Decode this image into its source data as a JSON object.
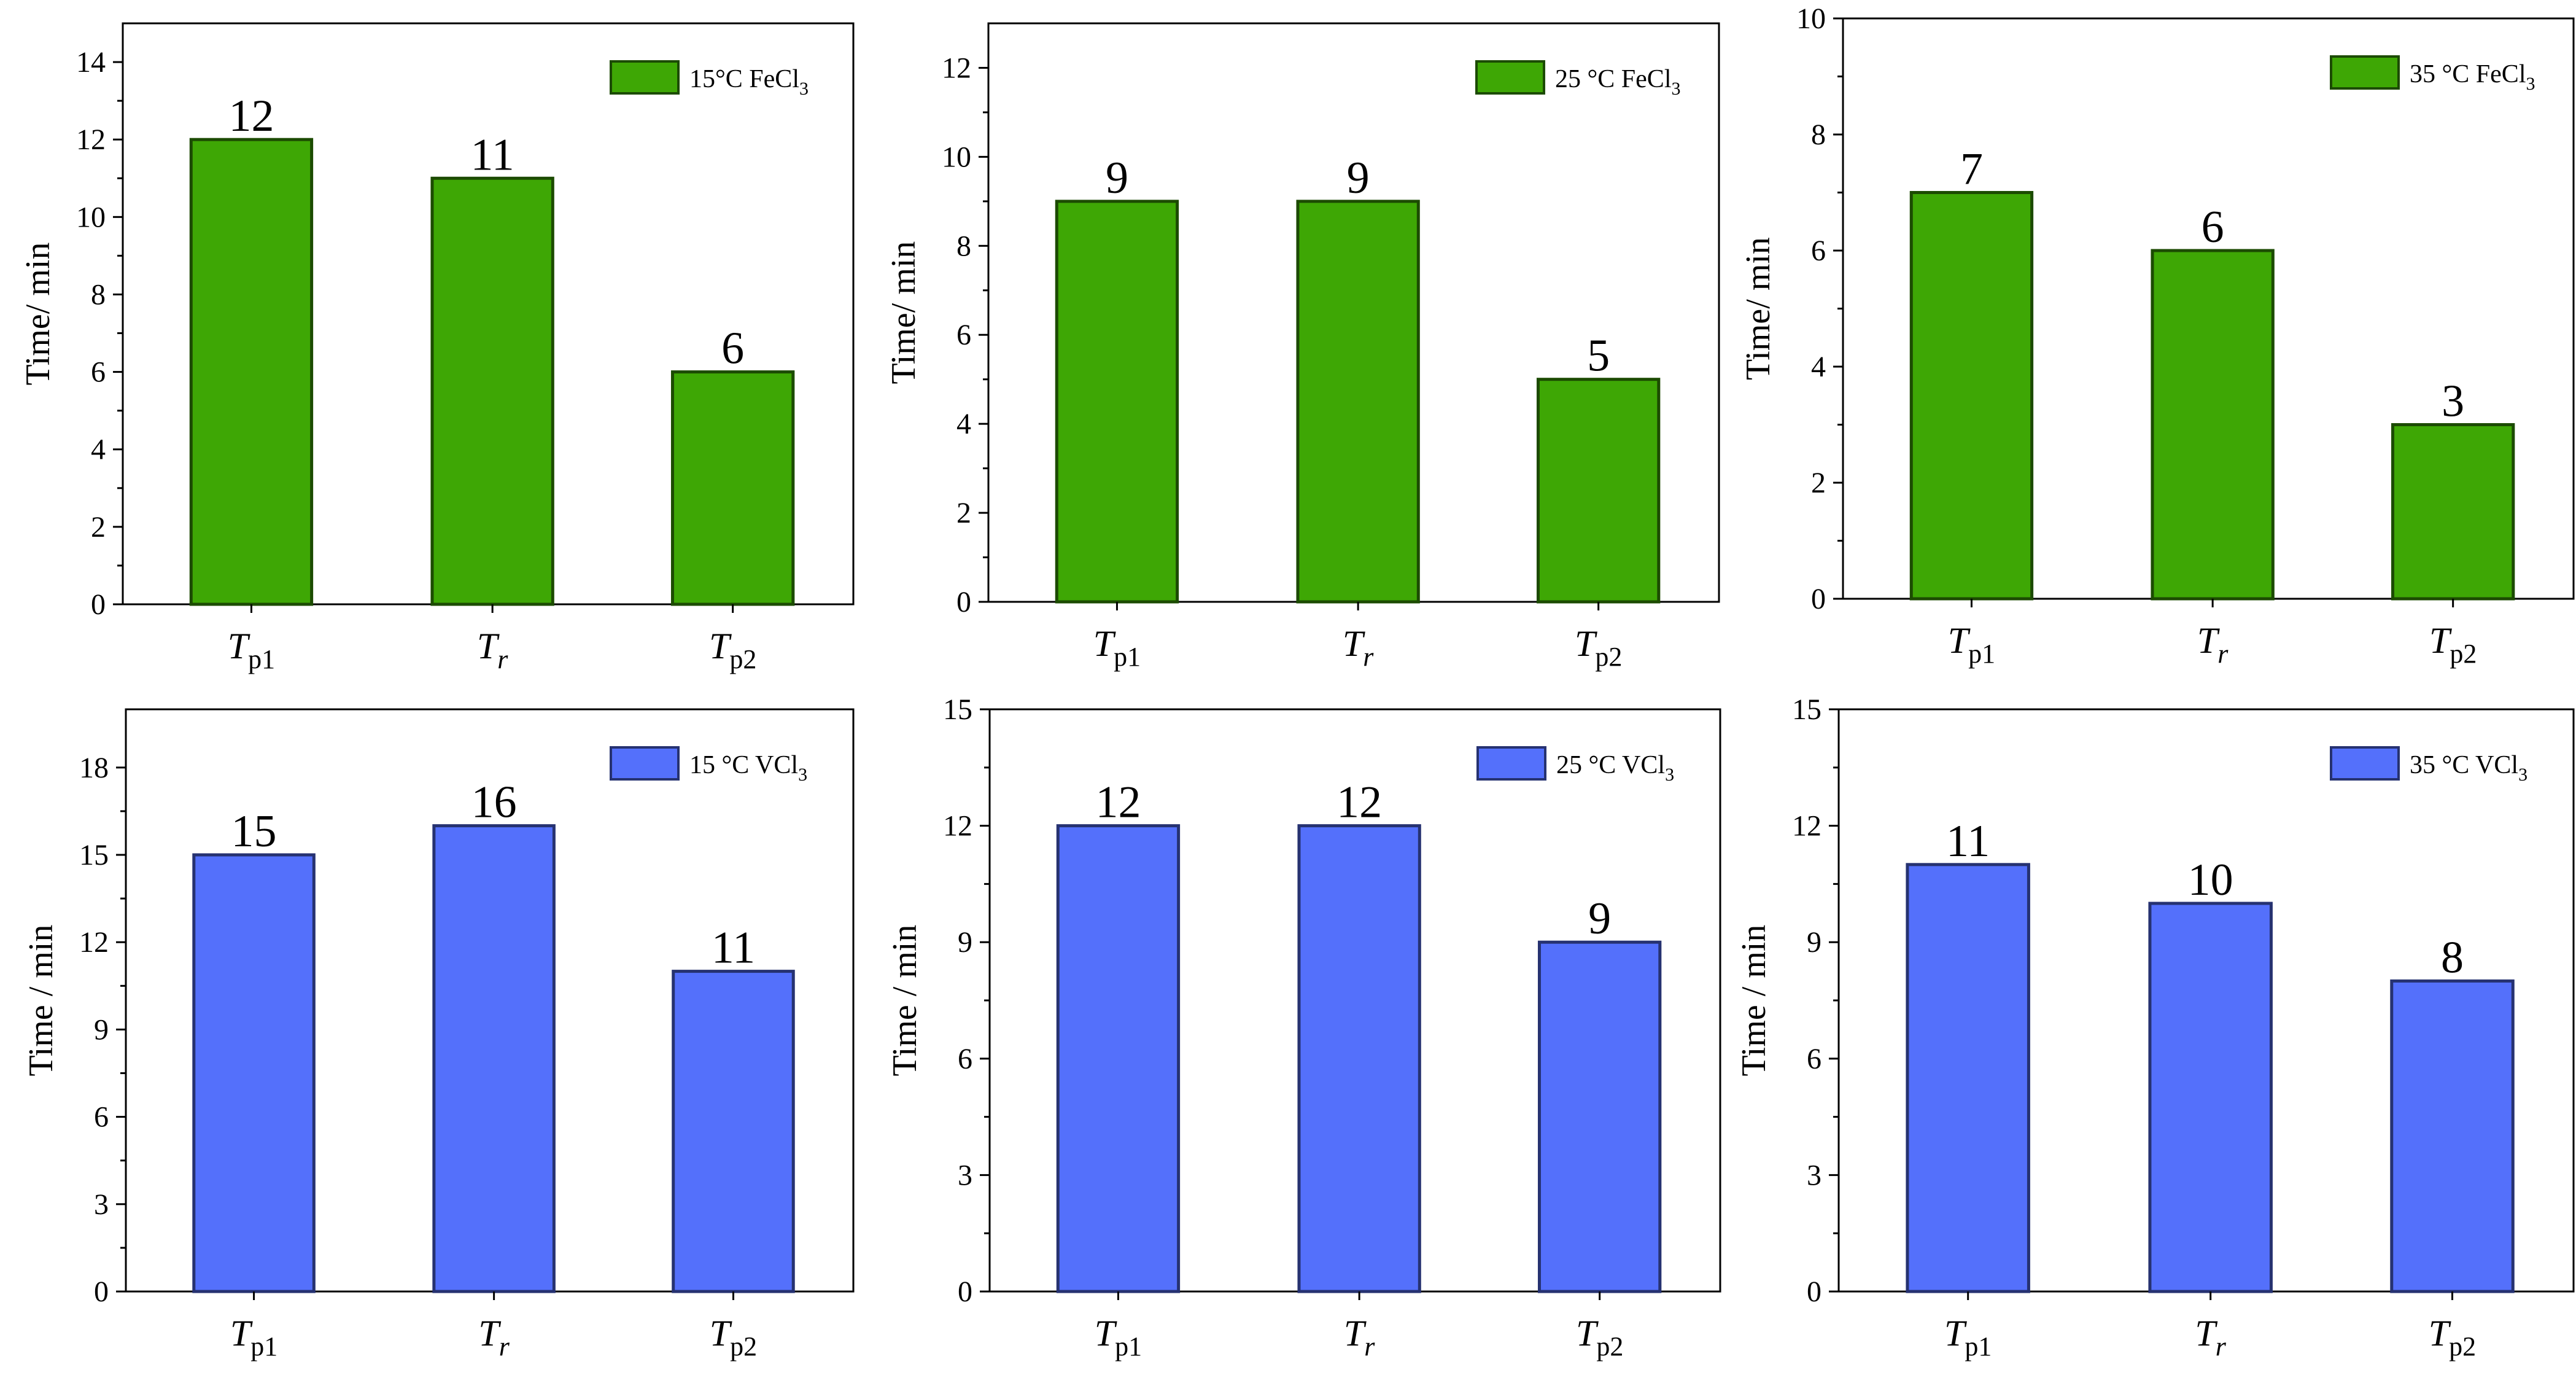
{
  "chart_data": [
    {
      "type": "bar",
      "legend": "15°C FeCl",
      "legend_sub": "3",
      "ylabel": "Time/ min",
      "ylim": [
        0,
        15
      ],
      "yticks": [
        0,
        2,
        4,
        6,
        8,
        10,
        12,
        14
      ],
      "categories": [
        {
          "main": "T",
          "sub": "p1"
        },
        {
          "main": "T",
          "sub": "r"
        },
        {
          "main": "T",
          "sub": "p2"
        }
      ],
      "values": [
        12,
        11,
        6
      ],
      "value_labels": [
        "12",
        "11",
        "6"
      ],
      "color": "#3ea705"
    },
    {
      "type": "bar",
      "legend": "25 °C FeCl",
      "legend_sub": "3",
      "ylabel": "Time/ min",
      "ylim": [
        0,
        13
      ],
      "yticks": [
        0,
        2,
        4,
        6,
        8,
        10,
        12
      ],
      "categories": [
        {
          "main": "T",
          "sub": "p1"
        },
        {
          "main": "T",
          "sub": "r"
        },
        {
          "main": "T",
          "sub": "p2"
        }
      ],
      "values": [
        9,
        9,
        5
      ],
      "value_labels": [
        "9",
        "9",
        "5"
      ],
      "color": "#3ea705"
    },
    {
      "type": "bar",
      "legend": "35 °C FeCl",
      "legend_sub": "3",
      "ylabel": "Time/ min",
      "ylim": [
        0,
        10
      ],
      "yticks": [
        0,
        2,
        4,
        6,
        8,
        10
      ],
      "categories": [
        {
          "main": "T",
          "sub": "p1"
        },
        {
          "main": "T",
          "sub": "r"
        },
        {
          "main": "T",
          "sub": "p2"
        }
      ],
      "values": [
        7,
        6,
        3
      ],
      "value_labels": [
        "7",
        "6",
        "3"
      ],
      "color": "#3ea705"
    },
    {
      "type": "bar",
      "legend": "15 °C VCl",
      "legend_sub": "3",
      "ylabel": "Time / min",
      "ylim": [
        0,
        20
      ],
      "yticks": [
        0,
        3,
        6,
        9,
        12,
        15,
        18
      ],
      "categories": [
        {
          "main": "T",
          "sub": "p1"
        },
        {
          "main": "T",
          "sub": "r"
        },
        {
          "main": "T",
          "sub": "p2"
        }
      ],
      "values": [
        15,
        16,
        11
      ],
      "value_labels": [
        "15",
        "16",
        "11"
      ],
      "color": "#5470fb"
    },
    {
      "type": "bar",
      "legend": "25 °C VCl",
      "legend_sub": "3",
      "ylabel": "Time / min",
      "ylim": [
        0,
        15
      ],
      "yticks": [
        0,
        3,
        6,
        9,
        12,
        15
      ],
      "categories": [
        {
          "main": "T",
          "sub": "p1"
        },
        {
          "main": "T",
          "sub": "r"
        },
        {
          "main": "T",
          "sub": "p2"
        }
      ],
      "values": [
        12,
        12,
        9
      ],
      "value_labels": [
        "12",
        "12",
        "9"
      ],
      "color": "#5470fb"
    },
    {
      "type": "bar",
      "legend": "35 °C VCl",
      "legend_sub": "3",
      "ylabel": "Time / min",
      "ylim": [
        0,
        15
      ],
      "yticks": [
        0,
        3,
        6,
        9,
        12,
        15
      ],
      "categories": [
        {
          "main": "T",
          "sub": "p1"
        },
        {
          "main": "T",
          "sub": "r"
        },
        {
          "main": "T",
          "sub": "p2"
        }
      ],
      "values": [
        11,
        10,
        8
      ],
      "value_labels": [
        "11",
        "10",
        "8"
      ],
      "color": "#5470fb"
    }
  ]
}
